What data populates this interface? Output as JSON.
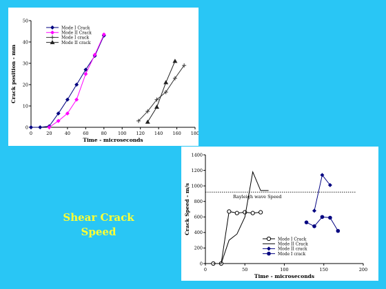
{
  "caption": {
    "line1": "Shear Crack",
    "line2": "Speed"
  },
  "chart_data": [
    {
      "type": "line",
      "title": "",
      "xlabel": "Time - microseconds",
      "ylabel": "Crack position - mm",
      "xlim": [
        0,
        180
      ],
      "ylim": [
        0,
        50
      ],
      "xticks": [
        0,
        20,
        40,
        60,
        80,
        100,
        120,
        140,
        160,
        180
      ],
      "yticks": [
        0,
        10,
        20,
        30,
        40,
        50
      ],
      "legend": "top-left",
      "grid": false,
      "series": [
        {
          "name": "Mode I Crack",
          "color": "#000080",
          "marker": "diamond",
          "x": [
            0,
            10,
            20,
            30,
            40,
            50,
            60,
            70,
            80
          ],
          "y": [
            0,
            0,
            0.5,
            6.5,
            13,
            20,
            27,
            33.5,
            43
          ]
        },
        {
          "name": "Mode II Crack",
          "color": "#ff00ff",
          "marker": "diamond",
          "x": [
            20,
            30,
            40,
            50,
            60,
            70,
            80
          ],
          "y": [
            0,
            3,
            6.5,
            13,
            25,
            34,
            43.5
          ]
        },
        {
          "name": "Mode I crack",
          "color": "#333333",
          "marker": "plus",
          "x": [
            118,
            128,
            138,
            148,
            158,
            168
          ],
          "y": [
            3,
            7.5,
            13,
            16.5,
            23,
            29
          ]
        },
        {
          "name": "Mode II crack",
          "color": "#222222",
          "marker": "triangle",
          "x": [
            128,
            138,
            148,
            158
          ],
          "y": [
            2.5,
            9.5,
            21,
            31
          ]
        }
      ]
    },
    {
      "type": "line",
      "title": "",
      "xlabel": "Time - microseconds",
      "ylabel": "Crack Speed - m/s",
      "xlim": [
        0,
        200
      ],
      "ylim": [
        0,
        1400
      ],
      "xticks": [
        0,
        50,
        100,
        150,
        200
      ],
      "yticks": [
        0,
        200,
        400,
        600,
        800,
        1000,
        1200,
        1400
      ],
      "legend": "bottom-center",
      "grid": false,
      "reference_line": {
        "y": 920,
        "label": "Rayleigh wave Speed"
      },
      "series": [
        {
          "name": "Mode I Crack",
          "color": "#000000",
          "marker": "open-circle",
          "x": [
            10,
            20,
            30,
            40,
            50,
            60,
            70
          ],
          "y": [
            0,
            0,
            670,
            650,
            660,
            650,
            660
          ]
        },
        {
          "name": "Mode II Crack",
          "color": "#000000",
          "marker": "none",
          "x": [
            10,
            20,
            30,
            40,
            50,
            60,
            70,
            80
          ],
          "y": [
            0,
            0,
            300,
            380,
            600,
            1180,
            940,
            940
          ]
        },
        {
          "name": "Mode II crack",
          "color": "#000080",
          "marker": "diamond",
          "x": [
            138,
            148,
            158
          ],
          "y": [
            680,
            1140,
            1010
          ]
        },
        {
          "name": "Mode I crack",
          "color": "#000080",
          "marker": "filled-circle",
          "x": [
            128,
            138,
            148,
            158,
            168
          ],
          "y": [
            530,
            480,
            600,
            590,
            420
          ]
        }
      ]
    }
  ]
}
